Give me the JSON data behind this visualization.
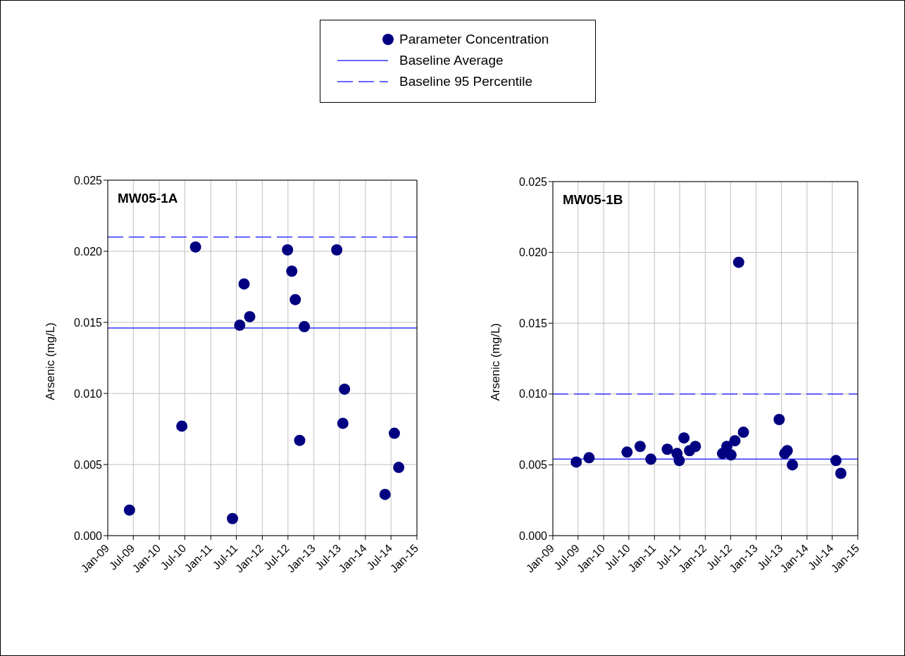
{
  "chart_data": [
    {
      "type": "scatter",
      "title": "MW05-1A",
      "ylabel": "Arsenic (mg/L)",
      "legend": "top",
      "grid": true,
      "marker": "circle",
      "xlim": [
        "2009-01",
        "2015-01"
      ],
      "ylim": [
        0,
        0.025
      ],
      "yticks": [
        {
          "value": 0,
          "label": "0.000"
        },
        {
          "value": 0.005,
          "label": "0.005"
        },
        {
          "value": 0.01,
          "label": "0.010"
        },
        {
          "value": 0.015,
          "label": "0.015"
        },
        {
          "value": 0.02,
          "label": "0.020"
        },
        {
          "value": 0.025,
          "label": "0.025"
        }
      ],
      "xticks": [
        {
          "value": "2009-01",
          "label": "Jan-09"
        },
        {
          "value": "2009-07",
          "label": "Jul-09"
        },
        {
          "value": "2010-01",
          "label": "Jan-10"
        },
        {
          "value": "2010-07",
          "label": "Jul-10"
        },
        {
          "value": "2011-01",
          "label": "Jan-11"
        },
        {
          "value": "2011-07",
          "label": "Jul-11"
        },
        {
          "value": "2012-01",
          "label": "Jan-12"
        },
        {
          "value": "2012-07",
          "label": "Jul-12"
        },
        {
          "value": "2013-01",
          "label": "Jan-13"
        },
        {
          "value": "2013-07",
          "label": "Jul-13"
        },
        {
          "value": "2014-01",
          "label": "Jan-14"
        },
        {
          "value": "2014-07",
          "label": "Jul-14"
        },
        {
          "value": "2015-01",
          "label": "Jan-15"
        }
      ],
      "series": [
        {
          "name": "Parameter Concentration",
          "color": "#000080",
          "x": [
            "2009-06-04",
            "2010-06-10",
            "2010-09-15",
            "2011-06-04",
            "2011-07-25",
            "2011-08-25",
            "2011-10-04",
            "2012-06-28",
            "2012-07-28",
            "2012-08-22",
            "2012-09-22",
            "2012-10-25",
            "2013-06-12",
            "2013-07-25",
            "2013-08-06",
            "2014-05-20",
            "2014-07-25",
            "2014-08-25"
          ],
          "values": [
            0.0018,
            0.0077,
            0.0203,
            0.0012,
            0.0148,
            0.0177,
            0.0154,
            0.0201,
            0.0186,
            0.0166,
            0.0067,
            0.0147,
            0.0201,
            0.0079,
            0.0103,
            0.0029,
            0.0072,
            0.0048
          ]
        }
      ],
      "ref_lines": [
        {
          "axis": "y",
          "value": 0.0146,
          "label": "Baseline Average",
          "color": "#3333ff",
          "line_style": "solid"
        },
        {
          "axis": "y",
          "value": 0.021,
          "label": "Baseline 95 Percentile",
          "color": "#3333ff",
          "line_style": "dashed"
        }
      ]
    },
    {
      "type": "scatter",
      "title": "MW05-1B",
      "ylabel": "Arsenic (mg/L)",
      "grid": true,
      "marker": "circle",
      "xlim": [
        "2009-01",
        "2015-01"
      ],
      "ylim": [
        0,
        0.025
      ],
      "yticks": [
        {
          "value": 0,
          "label": "0.000"
        },
        {
          "value": 0.005,
          "label": "0.005"
        },
        {
          "value": 0.01,
          "label": "0.010"
        },
        {
          "value": 0.015,
          "label": "0.015"
        },
        {
          "value": 0.02,
          "label": "0.020"
        },
        {
          "value": 0.025,
          "label": "0.025"
        }
      ],
      "xticks": [
        {
          "value": "2009-01",
          "label": "Jan-09"
        },
        {
          "value": "2009-07",
          "label": "Jul-09"
        },
        {
          "value": "2010-01",
          "label": "Jan-10"
        },
        {
          "value": "2010-07",
          "label": "Jul-10"
        },
        {
          "value": "2011-01",
          "label": "Jan-11"
        },
        {
          "value": "2011-07",
          "label": "Jul-11"
        },
        {
          "value": "2012-01",
          "label": "Jan-12"
        },
        {
          "value": "2012-07",
          "label": "Jul-12"
        },
        {
          "value": "2013-01",
          "label": "Jan-13"
        },
        {
          "value": "2013-07",
          "label": "Jul-13"
        },
        {
          "value": "2014-01",
          "label": "Jan-14"
        },
        {
          "value": "2014-07",
          "label": "Jul-14"
        },
        {
          "value": "2015-01",
          "label": "Jan-15"
        }
      ],
      "series": [
        {
          "color": "#000080",
          "x": [
            "2009-06-18",
            "2009-09-18",
            "2010-06-18",
            "2010-09-20",
            "2010-12-06",
            "2011-04-03",
            "2011-06-12",
            "2011-06-28",
            "2011-08-01",
            "2011-09-10",
            "2011-10-22",
            "2012-05-04",
            "2012-06-04",
            "2012-07-04",
            "2012-08-01",
            "2012-08-28",
            "2012-10-01",
            "2013-06-15",
            "2013-07-25",
            "2013-08-12",
            "2013-09-18",
            "2014-07-28",
            "2014-09-01"
          ],
          "values": [
            0.0052,
            0.0055,
            0.0059,
            0.0063,
            0.0054,
            0.0061,
            0.0058,
            0.0053,
            0.0069,
            0.006,
            0.0063,
            0.0058,
            0.0063,
            0.0057,
            0.0067,
            0.0193,
            0.0073,
            0.0082,
            0.0058,
            0.006,
            0.005,
            0.0053,
            0.0044
          ]
        }
      ],
      "ref_lines": [
        {
          "axis": "y",
          "value": 0.0054,
          "color": "#3333ff",
          "line_style": "solid"
        },
        {
          "axis": "y",
          "value": 0.01,
          "color": "#3333ff",
          "line_style": "dashed"
        }
      ]
    }
  ]
}
